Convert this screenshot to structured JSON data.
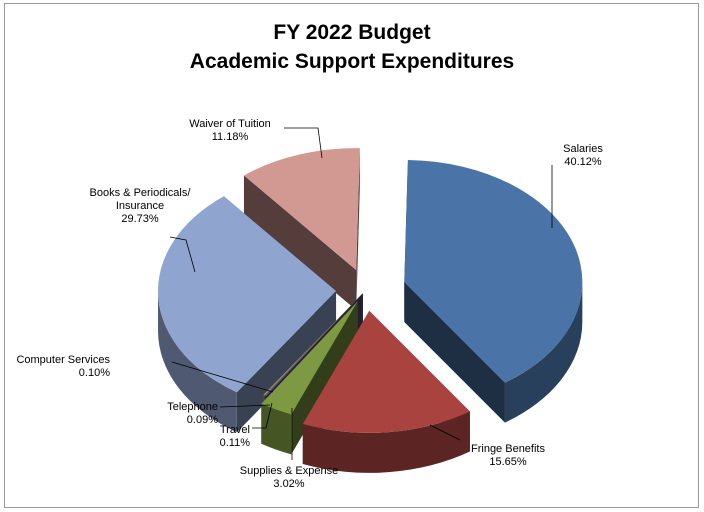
{
  "chart_data": {
    "type": "pie",
    "style": "3d-exploded",
    "title": "FY 2022 Budget",
    "subtitle": "Academic Support Expenditures",
    "slices": [
      {
        "label": "Salaries",
        "value": 40.12,
        "value_label": "40.12%",
        "color": "#4a74a8"
      },
      {
        "label": "Fringe Benefits",
        "value": 15.65,
        "value_label": "15.65%",
        "color": "#a8433f"
      },
      {
        "label": "Supplies & Expense",
        "value": 3.02,
        "value_label": "3.02%",
        "color": "#7d9a42"
      },
      {
        "label": "Travel",
        "value": 0.11,
        "value_label": "0.11%",
        "color": "#5a4a7e"
      },
      {
        "label": "Telephone",
        "value": 0.09,
        "value_label": "0.09%",
        "color": "#3f8a9e"
      },
      {
        "label": "Computer Services",
        "value": 0.1,
        "value_label": "0.10%",
        "color": "#d48a3a"
      },
      {
        "label": "Books & Periodicals/ Insurance",
        "label_lines": [
          "Books & Periodicals/",
          "Insurance"
        ],
        "value": 29.73,
        "value_label": "29.73%",
        "color": "#8fa4cf"
      },
      {
        "label": "Waiver of Tuition",
        "value": 11.18,
        "value_label": "11.18%",
        "color": "#d29892"
      }
    ]
  }
}
